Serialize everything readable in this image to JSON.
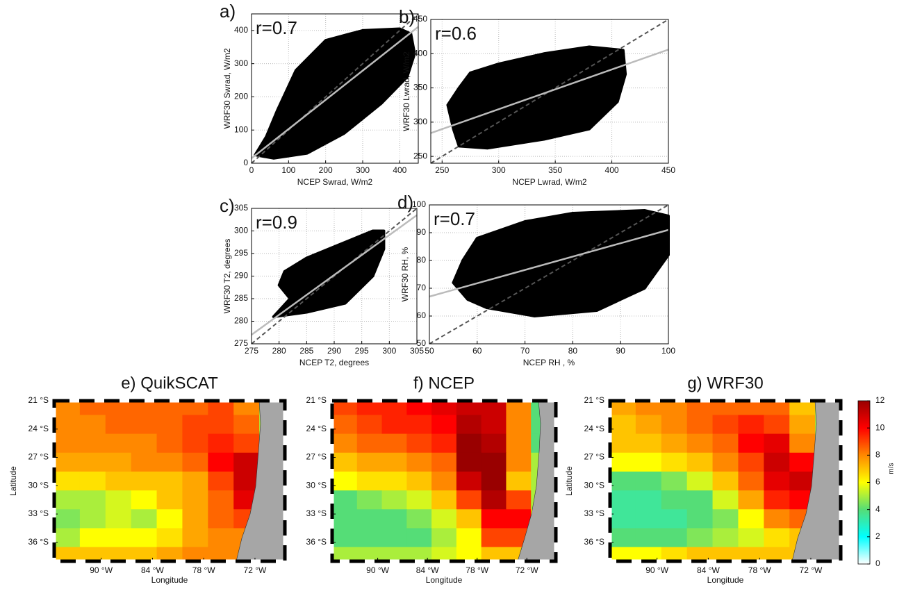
{
  "chart_data": [
    {
      "type": "scatter",
      "title": "a)",
      "annotation": "r=0.7",
      "xlabel": "NCEP Swrad, W/m2",
      "ylabel": "WRF30 Swrad, W/m2",
      "xlim": [
        0,
        450
      ],
      "ylim": [
        0,
        450
      ],
      "xticks": [
        0,
        100,
        200,
        300,
        400
      ],
      "yticks": [
        0,
        100,
        200,
        300,
        400
      ],
      "grid": true,
      "cloud": {
        "color": "#000000",
        "x": [
          10,
          60,
          150,
          250,
          350,
          420,
          440,
          430,
          400,
          300,
          200,
          120,
          70,
          40
        ],
        "y": [
          25,
          15,
          30,
          90,
          180,
          260,
          330,
          390,
          405,
          400,
          370,
          280,
          160,
          80
        ]
      },
      "fit": {
        "color": "#bbbbbb",
        "x": [
          0,
          450
        ],
        "y": [
          15,
          411
        ]
      },
      "reference": {
        "color": "#555555",
        "x": [
          0,
          450
        ],
        "y": [
          0,
          450
        ]
      }
    },
    {
      "type": "scatter",
      "title": "b)",
      "annotation": "r=0.6",
      "xlabel": "NCEP Lwrad, W/m2",
      "ylabel": "WRF30 Lwrad, W/m2",
      "xlim": [
        240,
        450
      ],
      "ylim": [
        240,
        450
      ],
      "xticks": [
        250,
        300,
        350,
        400,
        450
      ],
      "yticks": [
        250,
        300,
        350,
        400,
        450
      ],
      "grid": true,
      "cloud": {
        "color": "#000000",
        "x": [
          255,
          265,
          275,
          300,
          340,
          380,
          410,
          412,
          405,
          380,
          340,
          290,
          265,
          260
        ],
        "y": [
          325,
          350,
          372,
          385,
          400,
          410,
          405,
          370,
          330,
          290,
          275,
          262,
          265,
          290
        ]
      },
      "fit": {
        "color": "#bbbbbb",
        "x": [
          240,
          450
        ],
        "y": [
          284,
          406
        ]
      },
      "reference": {
        "color": "#555555",
        "x": [
          240,
          450
        ],
        "y": [
          240,
          450
        ]
      }
    },
    {
      "type": "scatter",
      "title": "c)",
      "annotation": "r=0.9",
      "xlabel": "NCEP T2, degrees",
      "ylabel": "WRF30 T2, degrees",
      "xlim": [
        275,
        305
      ],
      "ylim": [
        275,
        305
      ],
      "xticks": [
        275,
        280,
        285,
        290,
        295,
        300,
        305
      ],
      "yticks": [
        275,
        280,
        285,
        290,
        295,
        300,
        305
      ],
      "grid": true,
      "cloud": {
        "color": "#000000",
        "x": [
          279,
          285,
          292,
          297,
          299,
          299,
          297,
          291,
          285,
          281,
          280,
          282
        ],
        "y": [
          281,
          282,
          284,
          290,
          296,
          300,
          300,
          297,
          294,
          291,
          288,
          285
        ]
      },
      "fit": {
        "color": "#bbbbbb",
        "x": [
          275,
          305
        ],
        "y": [
          277,
          303.5
        ]
      },
      "reference": {
        "color": "#555555",
        "x": [
          275,
          305
        ],
        "y": [
          275,
          305
        ]
      }
    },
    {
      "type": "scatter",
      "title": "d)",
      "annotation": "r=0.7",
      "xlabel": "NCEP RH , %",
      "ylabel": "WRF30 RH, %",
      "xlim": [
        50,
        100
      ],
      "ylim": [
        50,
        100
      ],
      "xticks": [
        50,
        60,
        70,
        80,
        90,
        100
      ],
      "yticks": [
        50,
        60,
        70,
        80,
        90,
        100
      ],
      "grid": true,
      "cloud": {
        "color": "#000000",
        "x": [
          58,
          62,
          72,
          85,
          95,
          100,
          100,
          95,
          80,
          70,
          60,
          57,
          55
        ],
        "y": [
          66,
          63,
          60,
          62,
          70,
          82,
          96,
          98,
          97,
          94,
          88,
          80,
          72
        ]
      },
      "fit": {
        "color": "#bbbbbb",
        "x": [
          50,
          100
        ],
        "y": [
          67,
          91
        ]
      },
      "reference": {
        "color": "#555555",
        "x": [
          50,
          100
        ],
        "y": [
          50,
          100
        ]
      }
    },
    {
      "type": "heatmap",
      "title": "e) QuikSCAT",
      "xlabel": "Longitude",
      "ylabel": "Latitude",
      "xlim": [
        -95.5,
        -68.5
      ],
      "ylim": [
        -38,
        -21
      ],
      "xticks": [
        {
          "value": -90,
          "label": "90 °W"
        },
        {
          "value": -84,
          "label": "84 °W"
        },
        {
          "value": -78,
          "label": "78 °W"
        },
        {
          "value": -72,
          "label": "72 °W"
        }
      ],
      "yticks": [
        {
          "value": -21,
          "label": "21 °S"
        },
        {
          "value": -24,
          "label": "24 °S"
        },
        {
          "value": -27,
          "label": "27 °S"
        },
        {
          "value": -30,
          "label": "30 °S"
        },
        {
          "value": -33,
          "label": "33 °S"
        },
        {
          "value": -36,
          "label": "36 °S"
        }
      ],
      "x": [
        -94,
        -91,
        -88,
        -85,
        -82,
        -79,
        -76,
        -73,
        -70
      ],
      "y": [
        -21.5,
        -23.5,
        -25.5,
        -27.5,
        -29.5,
        -31.5,
        -33.5,
        -35.5,
        -37.5
      ],
      "zlim": [
        0,
        12
      ],
      "colormap": [
        "#ffffff",
        "#00ffff",
        "#55dd77",
        "#ffff00",
        "#ff8800",
        "#ff0000",
        "#990000"
      ],
      "values": [
        [
          8,
          8.5,
          8.5,
          8.5,
          8.5,
          8.5,
          9,
          8,
          5
        ],
        [
          8,
          8,
          8.5,
          8.5,
          8.5,
          9,
          9,
          8.5,
          5
        ],
        [
          8,
          8,
          8,
          8,
          8.5,
          9,
          9.5,
          9,
          5
        ],
        [
          7.5,
          7.5,
          7.5,
          8,
          8,
          8.5,
          10,
          11,
          6
        ],
        [
          6.5,
          6.5,
          7,
          7,
          7,
          7.5,
          9,
          11,
          10
        ],
        [
          5,
          5,
          5.5,
          6,
          7,
          7.5,
          8.5,
          10.5,
          10
        ],
        [
          4.5,
          5,
          5.5,
          5,
          6,
          7.5,
          8.5,
          9,
          9
        ],
        [
          5,
          6,
          6,
          6,
          6.5,
          7.5,
          8,
          8,
          8
        ],
        [
          7,
          7,
          7,
          7,
          7.5,
          8,
          8,
          8,
          8
        ]
      ]
    },
    {
      "type": "heatmap",
      "title": "f) NCEP",
      "xlim": [
        -95.5,
        -68.5
      ],
      "ylim": [
        -38,
        -21
      ],
      "xticks": [
        {
          "value": -90,
          "label": "90 °W"
        },
        {
          "value": -84,
          "label": "84 °W"
        },
        {
          "value": -78,
          "label": "78 °W"
        },
        {
          "value": -72,
          "label": "72 °W"
        }
      ],
      "yticks": [
        {
          "value": -21,
          "label": "21 °S"
        },
        {
          "value": -24,
          "label": "24 °S"
        },
        {
          "value": -27,
          "label": "27 °S"
        },
        {
          "value": -30,
          "label": "30 °S"
        },
        {
          "value": -33,
          "label": "33 °S"
        },
        {
          "value": -36,
          "label": "36 °S"
        }
      ],
      "xlabel": "Longitude",
      "x": [
        -94,
        -91,
        -88,
        -85,
        -82,
        -79,
        -76,
        -73,
        -70
      ],
      "y": [
        -21.5,
        -23.5,
        -25.5,
        -27.5,
        -29.5,
        -31.5,
        -33.5,
        -35.5,
        -37.5
      ],
      "zlim": [
        0,
        12
      ],
      "colormap": [
        "#ffffff",
        "#00ffff",
        "#55dd77",
        "#ffff00",
        "#ff8800",
        "#ff0000",
        "#990000"
      ],
      "values": [
        [
          9,
          9.5,
          9.5,
          10,
          10.5,
          11,
          11,
          8,
          4
        ],
        [
          8.5,
          9,
          9.5,
          9.5,
          10,
          11.5,
          11,
          8,
          4
        ],
        [
          8,
          8.5,
          8.5,
          9,
          9.5,
          12,
          11.5,
          8,
          4
        ],
        [
          7,
          7.5,
          7.5,
          8,
          8.5,
          12,
          12,
          8,
          5
        ],
        [
          6,
          6.5,
          6.5,
          7,
          8,
          11,
          12,
          7,
          5
        ],
        [
          4,
          4.5,
          5,
          5.5,
          7,
          9,
          11.5,
          9,
          5
        ],
        [
          4,
          4,
          4,
          4.5,
          5.5,
          7,
          10,
          10,
          6
        ],
        [
          4,
          4,
          4,
          4,
          5,
          6,
          9,
          9,
          6
        ],
        [
          5,
          5,
          5,
          5,
          5.5,
          6,
          7,
          7,
          6
        ]
      ]
    },
    {
      "type": "heatmap",
      "title": "g) WRF30",
      "xlabel": "Longitude",
      "ylabel": "Latitude",
      "xlim": [
        -95.5,
        -68.5
      ],
      "ylim": [
        -38,
        -21
      ],
      "xticks": [
        {
          "value": -90,
          "label": "90 °W"
        },
        {
          "value": -84,
          "label": "84 °W"
        },
        {
          "value": -78,
          "label": "78 °W"
        },
        {
          "value": -72,
          "label": "72 °W"
        }
      ],
      "yticks": [
        {
          "value": -21,
          "label": "21 °S"
        },
        {
          "value": -24,
          "label": "24 °S"
        },
        {
          "value": -27,
          "label": "27 °S"
        },
        {
          "value": -30,
          "label": "30 °S"
        },
        {
          "value": -33,
          "label": "33 °S"
        },
        {
          "value": -36,
          "label": "36 °S"
        }
      ],
      "x": [
        -94,
        -91,
        -88,
        -85,
        -82,
        -79,
        -76,
        -73,
        -70
      ],
      "y": [
        -21.5,
        -23.5,
        -25.5,
        -27.5,
        -29.5,
        -31.5,
        -33.5,
        -35.5,
        -37.5
      ],
      "zlim": [
        0,
        12
      ],
      "colormap": [
        "#ffffff",
        "#00ffff",
        "#55dd77",
        "#ffff00",
        "#ff8800",
        "#ff0000",
        "#990000"
      ],
      "values": [
        [
          7.5,
          8,
          8,
          8.5,
          8.5,
          8.5,
          8.5,
          7,
          5
        ],
        [
          7,
          7.5,
          8,
          8.5,
          9,
          9.5,
          9,
          7.5,
          5
        ],
        [
          7,
          7,
          7.5,
          8,
          8.5,
          10,
          10.5,
          8,
          5
        ],
        [
          6,
          6,
          6.5,
          7,
          8,
          9,
          11,
          10,
          5
        ],
        [
          4,
          4,
          4.5,
          5.5,
          7,
          8.5,
          10.5,
          11,
          6
        ],
        [
          3.5,
          3.5,
          4,
          4,
          5.5,
          7.5,
          9.5,
          10,
          6
        ],
        [
          3.5,
          3.5,
          3.5,
          4,
          4.5,
          6,
          8,
          8.5,
          6
        ],
        [
          4,
          4,
          4,
          4.5,
          5,
          5.5,
          6.5,
          7,
          6
        ],
        [
          6,
          6,
          6.5,
          7,
          7,
          7,
          7,
          7,
          6
        ]
      ],
      "colorbar": {
        "label": "m/s",
        "ticks": [
          0,
          2,
          4,
          6,
          8,
          10,
          12
        ]
      }
    }
  ]
}
